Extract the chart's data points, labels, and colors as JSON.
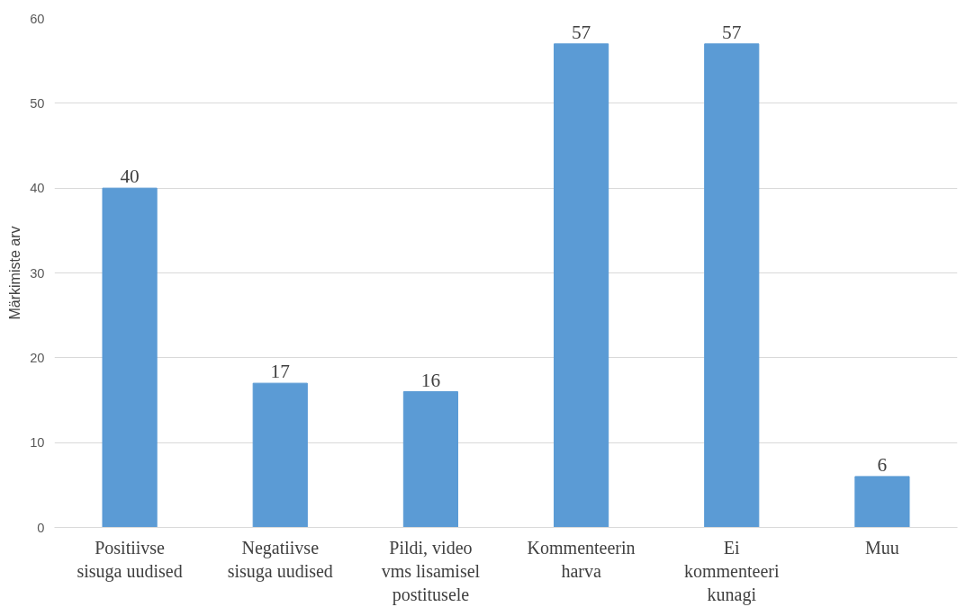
{
  "chart_data": {
    "type": "bar",
    "ylabel": "Märkimiste arv",
    "categories": [
      "Positiivse\nsisuga uudised",
      "Negatiivse\nsisuga uudised",
      "Pildi, video\nvms lisamisel\npostitusele",
      "Kommenteerin\nharva",
      "Ei\nkommenteeri\nkunagi",
      "Muu"
    ],
    "values": [
      40,
      17,
      16,
      57,
      57,
      6
    ],
    "color": "#5b9bd5",
    "ylim": [
      0,
      60
    ],
    "yticks": [
      0,
      10,
      20,
      30,
      40,
      50,
      60
    ],
    "grid": "y",
    "data_labels": true
  }
}
